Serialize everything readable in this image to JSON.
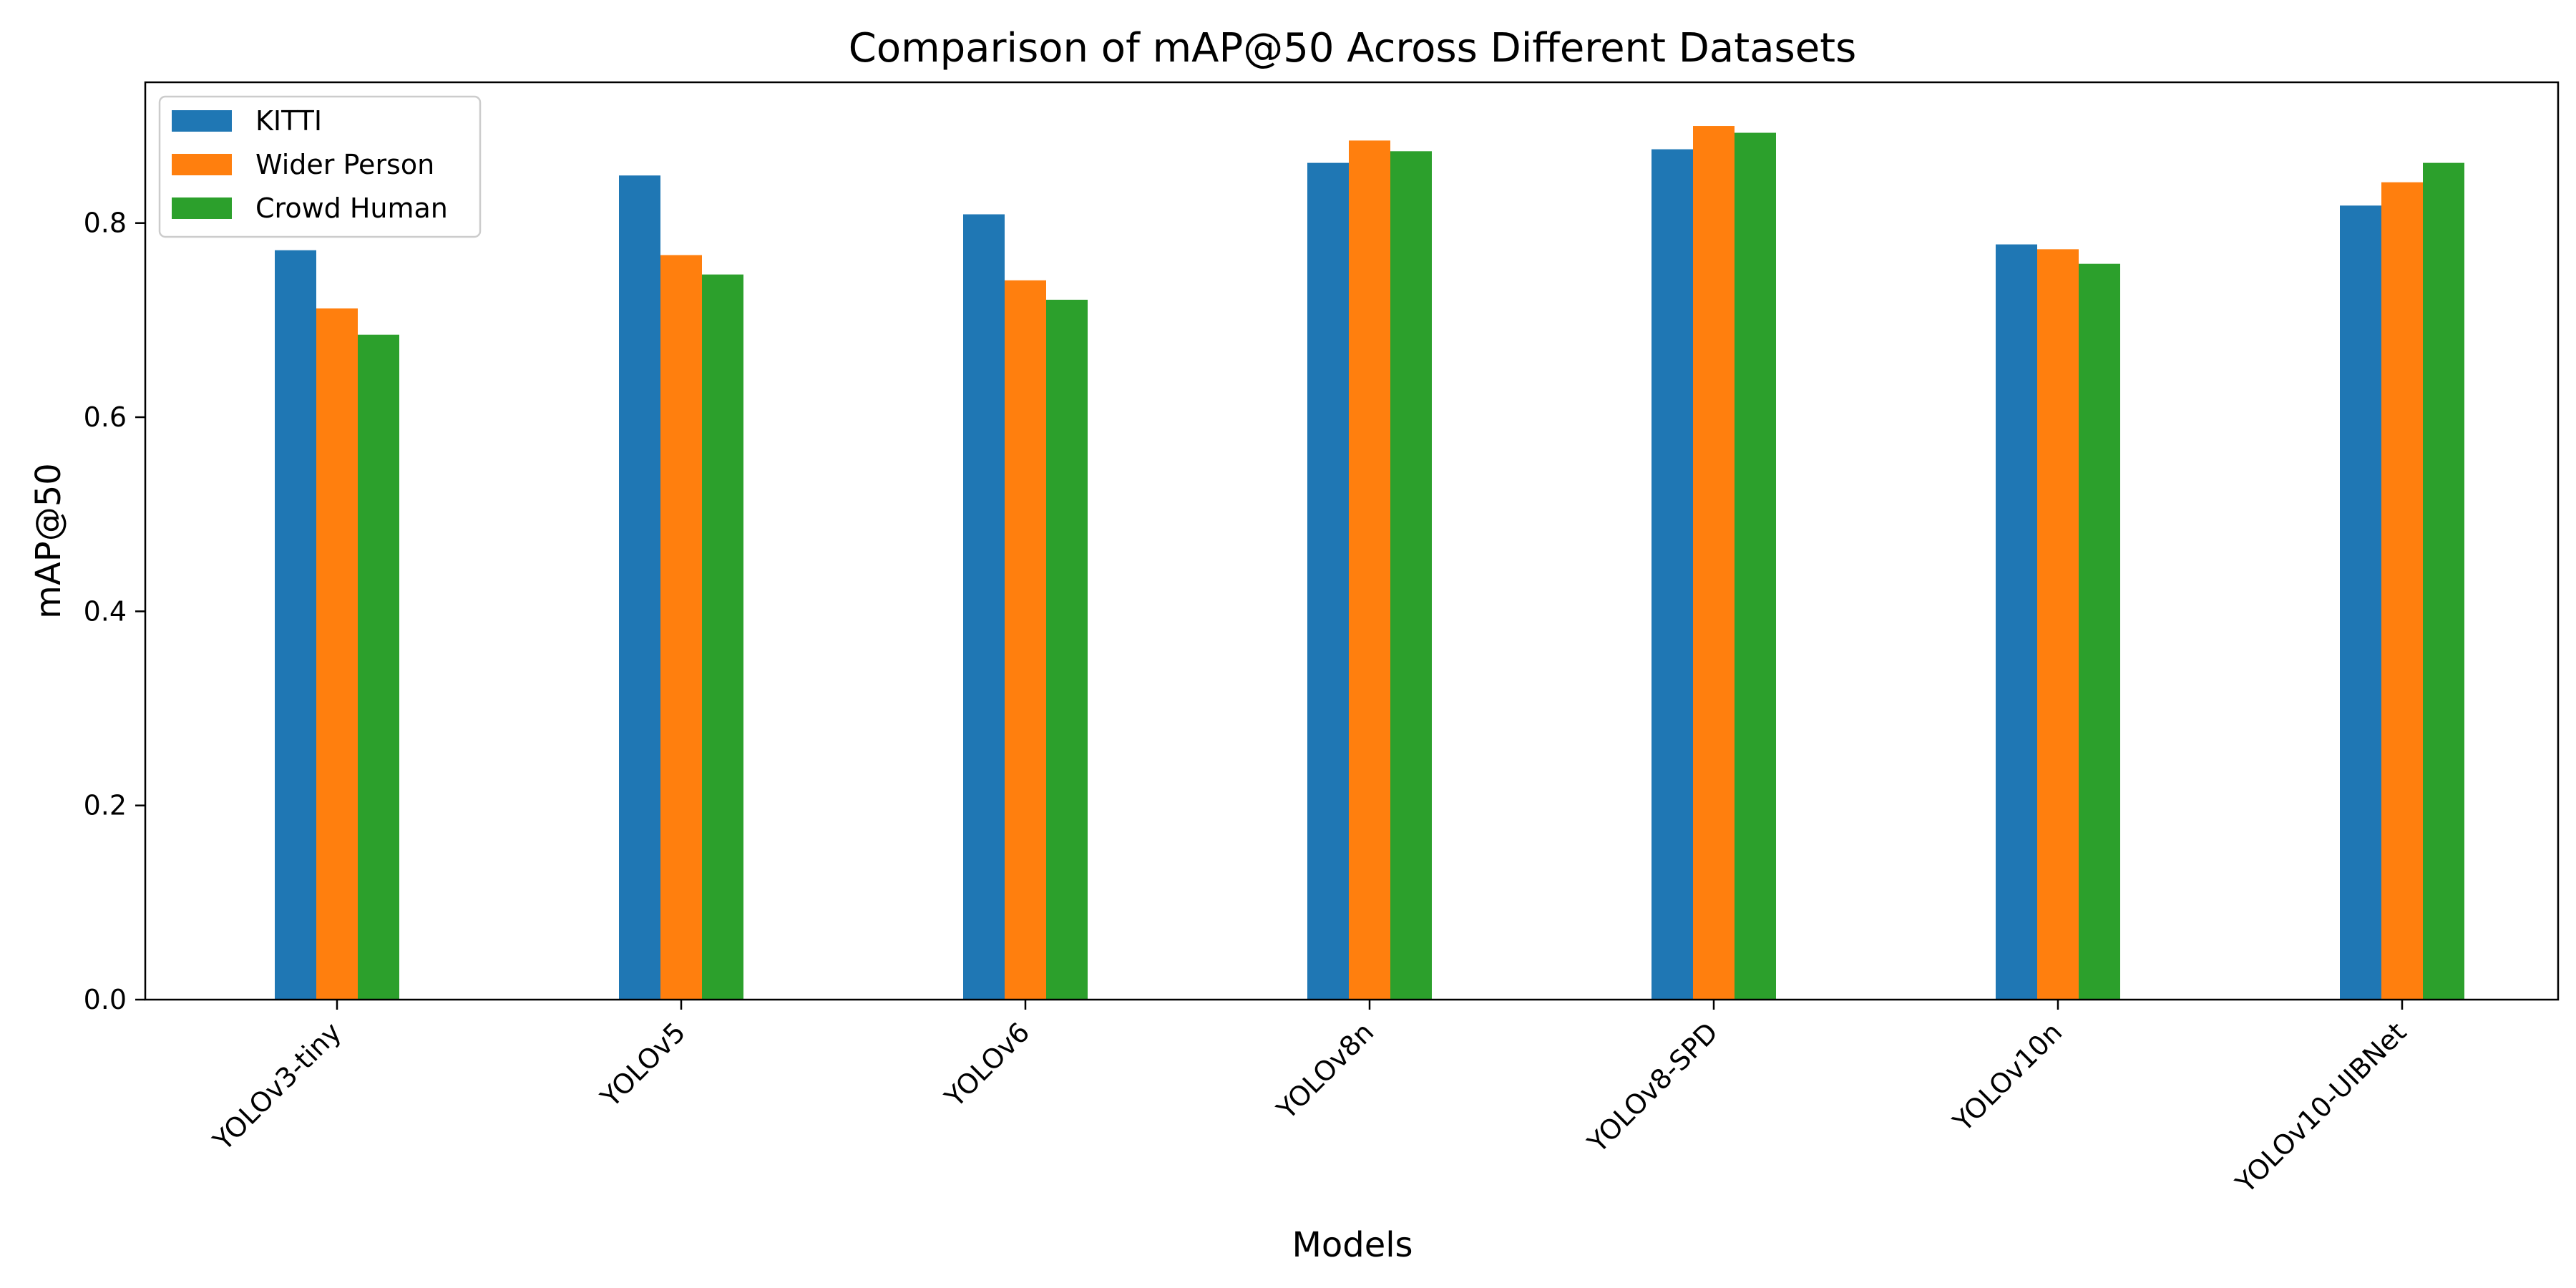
{
  "chart_data": {
    "type": "bar",
    "title": "Comparison of mAP@50 Across Different Datasets",
    "xlabel": "Models",
    "ylabel": "mAP@50",
    "ylim": [
      0,
      0.945
    ],
    "yticks": [
      0.0,
      0.2,
      0.4,
      0.6,
      0.8
    ],
    "ytick_labels": [
      "0.0",
      "0.2",
      "0.4",
      "0.6",
      "0.8"
    ],
    "grid": false,
    "legend_position": "top-left",
    "categories": [
      "YOLOv3-tiny",
      "YOLOv5",
      "YOLOv6",
      "YOLOv8n",
      "YOLOv8-SPD",
      "YOLOv10n",
      "YOLOv10-UIBNet"
    ],
    "series": [
      {
        "name": "KITTI",
        "color": "#1f77b4",
        "values": [
          0.772,
          0.849,
          0.809,
          0.862,
          0.876,
          0.778,
          0.818
        ]
      },
      {
        "name": "Wider Person",
        "color": "#ff7f0e",
        "values": [
          0.712,
          0.767,
          0.741,
          0.885,
          0.9,
          0.773,
          0.842
        ]
      },
      {
        "name": "Crowd Human",
        "color": "#2ca02c",
        "values": [
          0.685,
          0.747,
          0.721,
          0.874,
          0.893,
          0.758,
          0.862
        ]
      }
    ]
  }
}
